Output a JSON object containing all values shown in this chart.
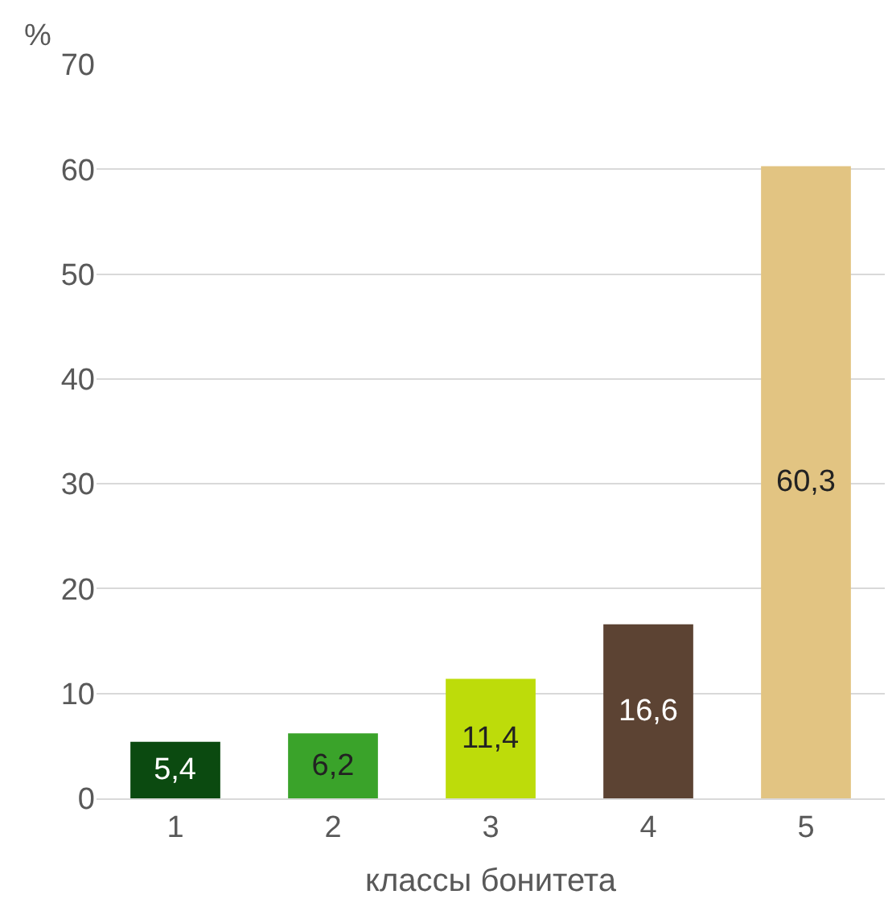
{
  "chart_data": {
    "type": "bar",
    "xlabel": "классы бонитета",
    "ylabel": "%",
    "categories": [
      "1",
      "2",
      "3",
      "4",
      "5"
    ],
    "values": [
      5.4,
      6.2,
      11.4,
      16.6,
      60.3
    ],
    "value_labels": [
      "5,4",
      "6,2",
      "11,4",
      "16,6",
      "60,3"
    ],
    "colors": [
      "#0b4a10",
      "#3aa32a",
      "#bddc0a",
      "#5c4333",
      "#e2c482"
    ],
    "ylim": [
      0,
      70
    ],
    "yticks": [
      0,
      10,
      20,
      30,
      40,
      50,
      60,
      70
    ],
    "grid": "y"
  }
}
